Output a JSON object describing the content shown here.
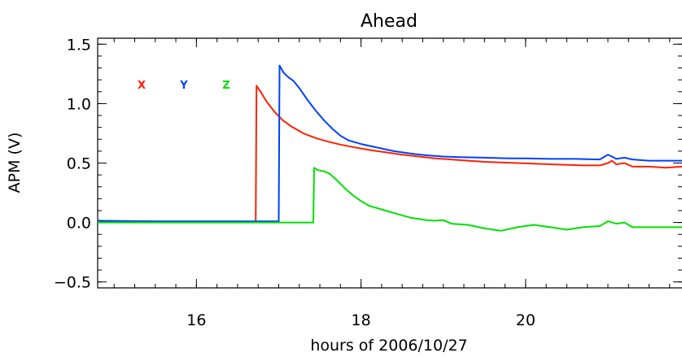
{
  "chart_data": {
    "type": "line",
    "title": "Ahead",
    "xlabel": "hours of 2006/10/27",
    "ylabel": "APM (V)",
    "xlim": [
      14.8,
      21.9
    ],
    "ylim": [
      -0.55,
      1.55
    ],
    "x_major_ticks": [
      16,
      18,
      20
    ],
    "x_tick_labels": [
      "16",
      "18",
      "20"
    ],
    "x_minor_step": 0.25,
    "y_major_ticks": [
      -0.5,
      0.0,
      0.5,
      1.0,
      1.5
    ],
    "y_tick_labels": [
      "−0.5",
      "0.0",
      "0.5",
      "1.0",
      "1.5"
    ],
    "y_minor_step": 0.1,
    "grid": false,
    "legend_placement": "top-left",
    "series": [
      {
        "name": "X",
        "color": "#ff2000",
        "points": [
          [
            14.8,
            0.01
          ],
          [
            15.5,
            0.005
          ],
          [
            16.0,
            0.005
          ],
          [
            16.5,
            0.005
          ],
          [
            16.72,
            0.005
          ],
          [
            16.73,
            1.15
          ],
          [
            16.78,
            1.1
          ],
          [
            16.85,
            1.02
          ],
          [
            16.95,
            0.93
          ],
          [
            17.05,
            0.86
          ],
          [
            17.15,
            0.81
          ],
          [
            17.3,
            0.75
          ],
          [
            17.45,
            0.71
          ],
          [
            17.6,
            0.68
          ],
          [
            17.75,
            0.655
          ],
          [
            17.9,
            0.635
          ],
          [
            18.1,
            0.61
          ],
          [
            18.3,
            0.59
          ],
          [
            18.5,
            0.57
          ],
          [
            18.7,
            0.555
          ],
          [
            18.9,
            0.54
          ],
          [
            19.1,
            0.53
          ],
          [
            19.3,
            0.52
          ],
          [
            19.5,
            0.51
          ],
          [
            19.7,
            0.505
          ],
          [
            19.9,
            0.5
          ],
          [
            20.1,
            0.495
          ],
          [
            20.3,
            0.49
          ],
          [
            20.5,
            0.485
          ],
          [
            20.7,
            0.48
          ],
          [
            20.9,
            0.48
          ],
          [
            21.0,
            0.5
          ],
          [
            21.05,
            0.52
          ],
          [
            21.1,
            0.49
          ],
          [
            21.2,
            0.5
          ],
          [
            21.3,
            0.47
          ],
          [
            21.5,
            0.47
          ],
          [
            21.7,
            0.46
          ],
          [
            21.9,
            0.47
          ]
        ]
      },
      {
        "name": "Y",
        "color": "#0040ff",
        "points": [
          [
            14.8,
            0.015
          ],
          [
            15.5,
            0.01
          ],
          [
            16.0,
            0.01
          ],
          [
            16.5,
            0.01
          ],
          [
            17.0,
            0.01
          ],
          [
            17.01,
            1.32
          ],
          [
            17.06,
            1.26
          ],
          [
            17.12,
            1.22
          ],
          [
            17.18,
            1.19
          ],
          [
            17.25,
            1.13
          ],
          [
            17.35,
            1.03
          ],
          [
            17.45,
            0.94
          ],
          [
            17.55,
            0.86
          ],
          [
            17.65,
            0.79
          ],
          [
            17.75,
            0.73
          ],
          [
            17.85,
            0.69
          ],
          [
            18.0,
            0.66
          ],
          [
            18.2,
            0.63
          ],
          [
            18.4,
            0.6
          ],
          [
            18.6,
            0.58
          ],
          [
            18.8,
            0.565
          ],
          [
            19.0,
            0.555
          ],
          [
            19.2,
            0.55
          ],
          [
            19.5,
            0.545
          ],
          [
            19.8,
            0.54
          ],
          [
            20.0,
            0.54
          ],
          [
            20.3,
            0.535
          ],
          [
            20.6,
            0.535
          ],
          [
            20.9,
            0.53
          ],
          [
            21.0,
            0.57
          ],
          [
            21.05,
            0.555
          ],
          [
            21.1,
            0.535
          ],
          [
            21.2,
            0.545
          ],
          [
            21.3,
            0.53
          ],
          [
            21.5,
            0.52
          ],
          [
            21.7,
            0.52
          ],
          [
            21.9,
            0.52
          ]
        ]
      },
      {
        "name": "Z",
        "color": "#00e000",
        "points": [
          [
            14.8,
            0.0
          ],
          [
            15.5,
            0.0
          ],
          [
            16.0,
            0.0
          ],
          [
            16.5,
            0.0
          ],
          [
            17.0,
            0.0
          ],
          [
            17.42,
            0.0
          ],
          [
            17.43,
            0.46
          ],
          [
            17.48,
            0.44
          ],
          [
            17.55,
            0.43
          ],
          [
            17.62,
            0.41
          ],
          [
            17.7,
            0.36
          ],
          [
            17.8,
            0.29
          ],
          [
            17.9,
            0.23
          ],
          [
            18.0,
            0.18
          ],
          [
            18.1,
            0.14
          ],
          [
            18.2,
            0.12
          ],
          [
            18.3,
            0.1
          ],
          [
            18.4,
            0.08
          ],
          [
            18.5,
            0.06
          ],
          [
            18.6,
            0.04
          ],
          [
            18.8,
            0.02
          ],
          [
            18.9,
            0.015
          ],
          [
            19.0,
            0.02
          ],
          [
            19.1,
            -0.01
          ],
          [
            19.3,
            -0.02
          ],
          [
            19.5,
            -0.05
          ],
          [
            19.7,
            -0.07
          ],
          [
            19.9,
            -0.04
          ],
          [
            20.1,
            -0.02
          ],
          [
            20.3,
            -0.04
          ],
          [
            20.5,
            -0.06
          ],
          [
            20.7,
            -0.04
          ],
          [
            20.9,
            -0.03
          ],
          [
            21.0,
            0.01
          ],
          [
            21.1,
            -0.01
          ],
          [
            21.2,
            0.0
          ],
          [
            21.25,
            -0.02
          ],
          [
            21.3,
            -0.04
          ],
          [
            21.5,
            -0.04
          ],
          [
            21.7,
            -0.04
          ],
          [
            21.9,
            -0.04
          ]
        ]
      }
    ]
  }
}
